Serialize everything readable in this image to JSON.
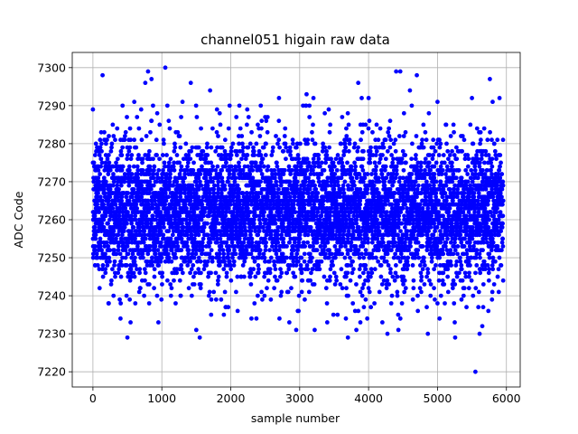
{
  "chart_data": {
    "type": "scatter",
    "title": "channel051 higain raw data",
    "xlabel": "sample number",
    "ylabel": "ADC Code",
    "xlim": [
      -300,
      6200
    ],
    "ylim": [
      7216,
      7304
    ],
    "xticks": [
      0,
      1000,
      2000,
      3000,
      4000,
      5000,
      6000
    ],
    "yticks": [
      7220,
      7230,
      7240,
      7250,
      7260,
      7270,
      7280,
      7290,
      7300
    ],
    "grid": true,
    "series": [
      {
        "color": "#0000ff",
        "marker": "circle",
        "n_points_total": 5954,
        "sample_points": [
          {
            "x": 0,
            "y": 7289
          },
          {
            "x": 30,
            "y": 7253
          },
          {
            "x": 60,
            "y": 7279
          },
          {
            "x": 120,
            "y": 7283
          },
          {
            "x": 140,
            "y": 7298
          },
          {
            "x": 190,
            "y": 7280
          },
          {
            "x": 230,
            "y": 7238
          },
          {
            "x": 300,
            "y": 7282
          },
          {
            "x": 400,
            "y": 7234
          },
          {
            "x": 430,
            "y": 7290
          },
          {
            "x": 500,
            "y": 7229
          },
          {
            "x": 600,
            "y": 7291
          },
          {
            "x": 700,
            "y": 7289
          },
          {
            "x": 760,
            "y": 7296
          },
          {
            "x": 800,
            "y": 7299
          },
          {
            "x": 850,
            "y": 7297
          },
          {
            "x": 950,
            "y": 7233
          },
          {
            "x": 1050,
            "y": 7300
          },
          {
            "x": 1100,
            "y": 7286
          },
          {
            "x": 1200,
            "y": 7238
          },
          {
            "x": 1300,
            "y": 7291
          },
          {
            "x": 1420,
            "y": 7296
          },
          {
            "x": 1500,
            "y": 7231
          },
          {
            "x": 1550,
            "y": 7229
          },
          {
            "x": 1700,
            "y": 7294
          },
          {
            "x": 1800,
            "y": 7289
          },
          {
            "x": 1900,
            "y": 7235
          },
          {
            "x": 2100,
            "y": 7236
          },
          {
            "x": 2300,
            "y": 7234
          },
          {
            "x": 2500,
            "y": 7287
          },
          {
            "x": 2700,
            "y": 7292
          },
          {
            "x": 2850,
            "y": 7233
          },
          {
            "x": 2950,
            "y": 7231
          },
          {
            "x": 3100,
            "y": 7293
          },
          {
            "x": 3200,
            "y": 7292
          },
          {
            "x": 3400,
            "y": 7233
          },
          {
            "x": 3550,
            "y": 7235
          },
          {
            "x": 3700,
            "y": 7229
          },
          {
            "x": 3850,
            "y": 7296
          },
          {
            "x": 3900,
            "y": 7292
          },
          {
            "x": 4000,
            "y": 7292
          },
          {
            "x": 4200,
            "y": 7233
          },
          {
            "x": 4400,
            "y": 7299
          },
          {
            "x": 4460,
            "y": 7299
          },
          {
            "x": 4600,
            "y": 7294
          },
          {
            "x": 4700,
            "y": 7298
          },
          {
            "x": 4860,
            "y": 7230
          },
          {
            "x": 5000,
            "y": 7291
          },
          {
            "x": 5250,
            "y": 7233
          },
          {
            "x": 5500,
            "y": 7292
          },
          {
            "x": 5550,
            "y": 7220
          },
          {
            "x": 5650,
            "y": 7232
          },
          {
            "x": 5760,
            "y": 7297
          },
          {
            "x": 5800,
            "y": 7291
          },
          {
            "x": 5900,
            "y": 7292
          }
        ],
        "bulk_distribution": {
          "x_range": [
            0,
            5954
          ],
          "y_mean": 7262,
          "y_std": 9.5,
          "y_integer_valued": true
        }
      }
    ]
  }
}
